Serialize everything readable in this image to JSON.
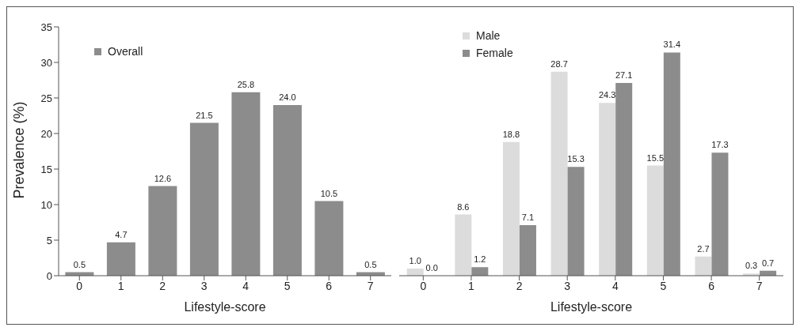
{
  "chart_data": [
    {
      "type": "bar",
      "xlabel": "Lifestyle-score",
      "ylabel": "Prevalence (%)",
      "categories": [
        "0",
        "1",
        "2",
        "3",
        "4",
        "5",
        "6",
        "7"
      ],
      "series": [
        {
          "name": "Overall",
          "color": "#8c8c8c",
          "values": [
            0.5,
            4.7,
            12.6,
            21.5,
            25.8,
            24.0,
            10.5,
            0.5
          ],
          "value_labels": [
            "0.5",
            "4.7",
            "12.6",
            "21.5",
            "25.8",
            "24.0",
            "10.5",
            "0.5"
          ]
        }
      ],
      "ylim": [
        0,
        35
      ],
      "yticks": [
        0,
        5,
        10,
        15,
        20,
        25,
        30,
        35
      ],
      "grid": false,
      "legend": "top left"
    },
    {
      "type": "bar",
      "xlabel": "Lifestyle-score",
      "categories": [
        "0",
        "1",
        "2",
        "3",
        "4",
        "5",
        "6",
        "7"
      ],
      "series": [
        {
          "name": "Male",
          "color": "#dcdcdc",
          "values": [
            1.0,
            8.6,
            18.8,
            28.7,
            24.3,
            15.5,
            2.7,
            0.3
          ],
          "value_labels": [
            "1.0",
            "8.6",
            "18.8",
            "28.7",
            "24.3",
            "15.5",
            "2.7",
            "0.3"
          ]
        },
        {
          "name": "Female",
          "color": "#8c8c8c",
          "values": [
            0.0,
            1.2,
            7.1,
            15.3,
            27.1,
            31.4,
            17.3,
            0.7
          ],
          "value_labels": [
            "0.0",
            "1.2",
            "7.1",
            "15.3",
            "27.1",
            "31.4",
            "17.3",
            "0.7"
          ]
        }
      ],
      "ylim": [
        0,
        35
      ],
      "yticks": [
        0,
        5,
        10,
        15,
        20,
        25,
        30,
        35
      ],
      "grid": false,
      "legend": "top left",
      "tick_labels": "x"
    }
  ]
}
